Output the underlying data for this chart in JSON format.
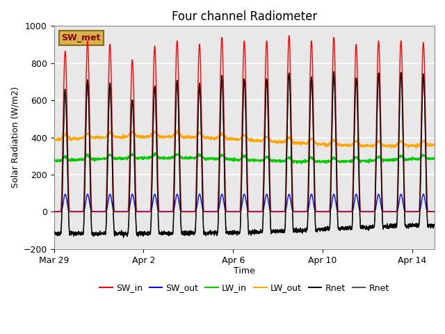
{
  "title": "Four channel Radiometer",
  "xlabel": "Time",
  "ylabel": "Solar Radiation (W/m2)",
  "ylim": [
    -200,
    1000
  ],
  "xlim_days": 17,
  "background_color": "#e8e8e8",
  "grid_color": "#ffffff",
  "annotation_text": "SW_met",
  "annotation_box_color": "#d4b44a",
  "annotation_text_color": "#8b0000",
  "series": {
    "SW_in": {
      "color": "#ff0000",
      "lw": 1.0
    },
    "SW_out": {
      "color": "#0000ff",
      "lw": 1.0
    },
    "LW_in": {
      "color": "#00cc00",
      "lw": 1.0
    },
    "LW_out": {
      "color": "#ffa500",
      "lw": 1.0
    },
    "Rnet1": {
      "color": "#000000",
      "lw": 1.0,
      "label": "Rnet"
    },
    "Rnet2": {
      "color": "#555555",
      "lw": 1.0,
      "label": "Rnet"
    }
  },
  "xtick_labels": [
    "Mar 29",
    "Apr 2",
    "Apr 6",
    "Apr 10",
    "Apr 14"
  ],
  "xtick_positions": [
    0,
    4,
    8,
    12,
    16
  ]
}
